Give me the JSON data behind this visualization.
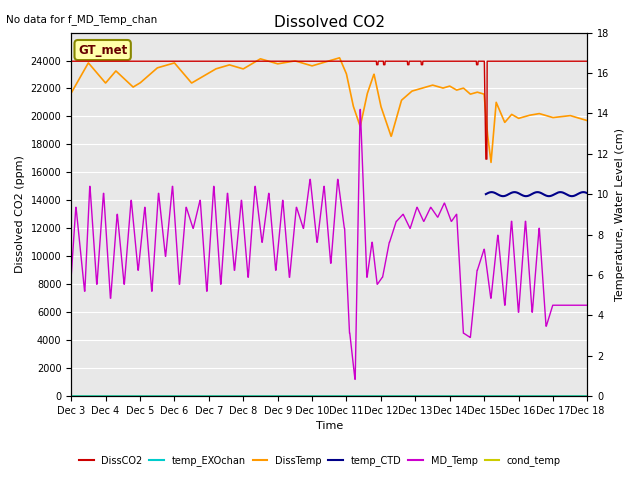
{
  "title": "Dissolved CO2",
  "subtitle": "No data for f_MD_Temp_chan",
  "xlabel": "Time",
  "ylabel_left": "Dissolved CO2 (ppm)",
  "ylabel_right": "Temperature, Water Level (cm)",
  "xlim": [
    3,
    18
  ],
  "ylim_left": [
    0,
    26000
  ],
  "ylim_right": [
    0,
    18
  ],
  "xtick_pos": [
    3,
    4,
    5,
    6,
    7,
    8,
    9,
    10,
    11,
    12,
    13,
    14,
    15,
    16,
    17,
    18
  ],
  "xtick_labels": [
    "Dec 3",
    "Dec 4",
    "Dec 5",
    "Dec 6",
    "Dec 7",
    "Dec 8",
    "Dec 9",
    "Dec 10",
    "Dec 11",
    "Dec 12",
    "Dec 13",
    "Dec 14",
    "Dec 15",
    "Dec 16",
    "Dec 17",
    "Dec 18"
  ],
  "ytick_left": [
    0,
    2000,
    4000,
    6000,
    8000,
    10000,
    12000,
    14000,
    16000,
    18000,
    20000,
    22000,
    24000
  ],
  "ytick_right": [
    0,
    2,
    4,
    6,
    8,
    10,
    12,
    14,
    16,
    18
  ],
  "bg_color": "#e8e8e8",
  "grid_color": "#ffffff",
  "colors": {
    "DissCO2": "#cc0000",
    "temp_EXOchan": "#00cccc",
    "DissTemp": "#ff9900",
    "temp_CTD": "#000088",
    "MD_Temp": "#cc00cc",
    "cond_temp": "#cccc00"
  },
  "legend_label": "GT_met",
  "legend_fg": "#660000",
  "legend_bg": "#ffffaa",
  "legend_border": "#888800"
}
